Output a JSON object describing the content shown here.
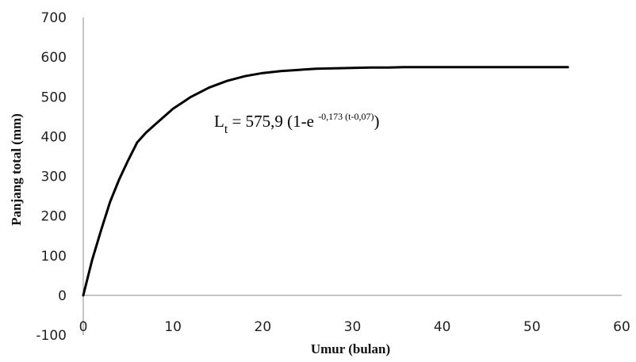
{
  "chart_data": {
    "type": "line",
    "xlabel": "Umur (bulan)",
    "ylabel": "Panjang total (mm)",
    "xlim": [
      0,
      60
    ],
    "ylim": [
      -100,
      700
    ],
    "xticks": [
      0,
      10,
      20,
      30,
      40,
      50,
      60
    ],
    "yticks": [
      -100,
      0,
      100,
      200,
      300,
      400,
      500,
      600,
      700
    ],
    "grid": false,
    "series": [
      {
        "color": "#000000",
        "x": [
          0,
          1,
          2,
          3,
          4,
          5,
          6,
          7,
          8,
          10,
          12,
          14,
          16,
          18,
          20,
          22,
          24,
          26,
          28,
          30,
          32,
          34,
          36,
          38,
          40,
          42,
          44,
          46,
          48,
          50,
          52,
          54
        ],
        "y": [
          0,
          90,
          165,
          236,
          292,
          340,
          385,
          410,
          430,
          470,
          500,
          523,
          540,
          552,
          560,
          565,
          568,
          571,
          572,
          573,
          574,
          574,
          575,
          575,
          575,
          575,
          575,
          575,
          575,
          575,
          575,
          575
        ]
      }
    ],
    "annotation": {
      "base": "L",
      "sub": "t",
      "main": " = 575,9 (1-e ",
      "sup": "-0,173 (t-0,07)",
      "end": ")"
    }
  }
}
